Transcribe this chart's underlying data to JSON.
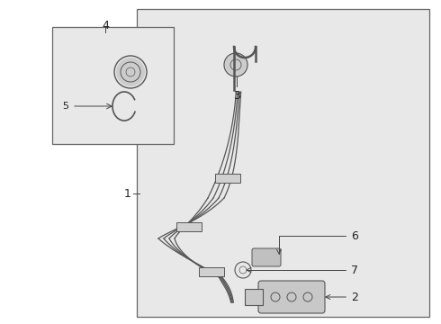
{
  "bg_color": "#ebebeb",
  "outer_bg": "#ffffff",
  "label_color": "#222222",
  "line_color": "#444444",
  "part_color": "#555555",
  "box_face": "#e8e8e8",
  "box_edge": "#666666"
}
